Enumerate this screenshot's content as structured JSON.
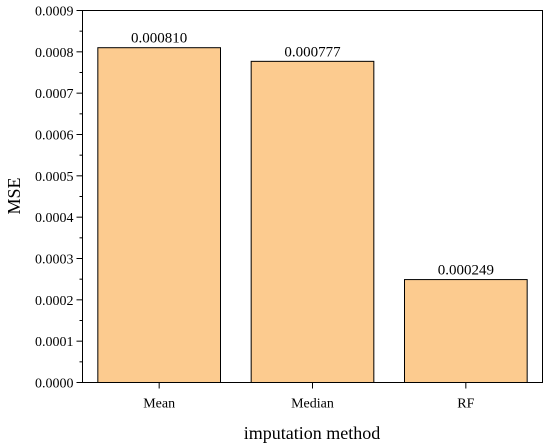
{
  "chart_data": {
    "type": "bar",
    "title": "",
    "xlabel": "imputation method",
    "ylabel": "MSE",
    "categories": [
      "Mean",
      "Median",
      "RF"
    ],
    "values": [
      0.00081,
      0.000777,
      0.000249
    ],
    "data_labels": [
      "0.000810",
      "0.000777",
      "0.000249"
    ],
    "ylim": [
      0,
      0.0009
    ],
    "yticks": [
      0,
      0.0001,
      0.0002,
      0.0003,
      0.0004,
      0.0005,
      0.0006,
      0.0007,
      0.0008,
      0.0009
    ],
    "ytick_labels": [
      "0.0000",
      "0.0001",
      "0.0002",
      "0.0003",
      "0.0004",
      "0.0005",
      "0.0006",
      "0.0007",
      "0.0008",
      "0.0009"
    ],
    "grid": false,
    "legend": "none",
    "bar_color": "#FCCB8F",
    "bar_edge_color": "#000000"
  }
}
